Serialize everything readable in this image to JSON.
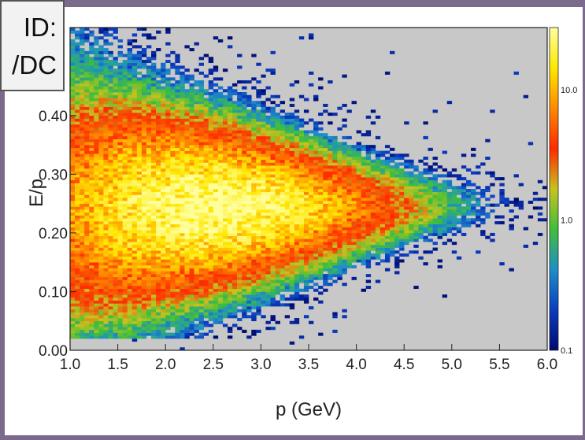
{
  "overlay": {
    "line1": "ID:",
    "line2": "/DC"
  },
  "chart_data": {
    "type": "heatmap",
    "title": "",
    "xlabel": "p (GeV)",
    "ylabel": "E/p",
    "xlim": [
      1.0,
      6.0
    ],
    "ylim": [
      0.0,
      0.55
    ],
    "xticks": [
      "1.0",
      "1.5",
      "2.0",
      "2.5",
      "3.0",
      "3.5",
      "4.0",
      "4.5",
      "5.0",
      "5.5",
      "6.0"
    ],
    "yticks": [
      "0.00",
      "0.10",
      "0.20",
      "0.30",
      "0.40"
    ],
    "colorbar": {
      "scale": "log",
      "range": [
        0.1,
        30
      ],
      "tick_labels": [
        "0.1",
        "1.0",
        "10.0"
      ],
      "colors": [
        "#000a6e",
        "#0b3cc0",
        "#1e8fc8",
        "#3fbf3a",
        "#c8c21e",
        "#ff2a00",
        "#ff8a00",
        "#ffe800",
        "#ffffa0"
      ]
    },
    "background_color": "#c8c8c8",
    "band": {
      "description_points": [
        {
          "p": 1.0,
          "center": 0.245,
          "width": 0.17
        },
        {
          "p": 2.0,
          "center": 0.245,
          "width": 0.13
        },
        {
          "p": 3.0,
          "center": 0.245,
          "width": 0.1
        },
        {
          "p": 4.0,
          "center": 0.245,
          "width": 0.07
        },
        {
          "p": 5.0,
          "center": 0.245,
          "width": 0.05
        },
        {
          "p": 6.0,
          "center": 0.245,
          "width": 0.04
        }
      ],
      "peak_p": 2.5,
      "peak_value": 30
    }
  }
}
